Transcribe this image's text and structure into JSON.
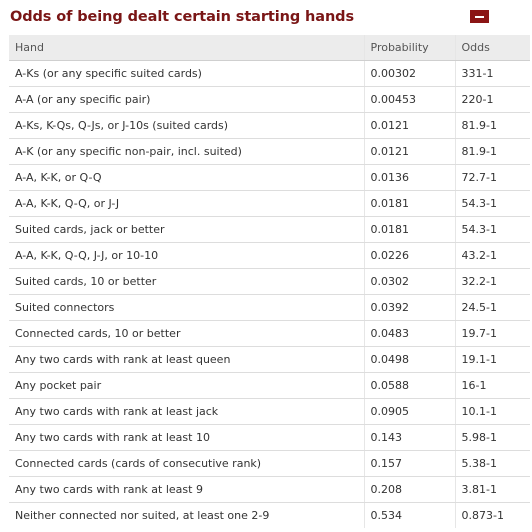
{
  "title": "Odds of being dealt certain starting hands",
  "collapse_button": {
    "icon": "minus-icon",
    "color": "#8b1515"
  },
  "colors": {
    "title": "#7a1616",
    "header_bg": "#ececec",
    "text": "#333333"
  },
  "table": {
    "headers": {
      "hand": "Hand",
      "probability": "Probability",
      "odds": "Odds"
    },
    "rows": [
      {
        "hand": "A-Ks (or any specific suited cards)",
        "probability": "0.00302",
        "odds": "331-1"
      },
      {
        "hand": "A-A (or any specific pair)",
        "probability": "0.00453",
        "odds": "220-1"
      },
      {
        "hand": "A-Ks, K-Qs, Q-Js, or J-10s (suited cards)",
        "probability": "0.0121",
        "odds": "81.9-1"
      },
      {
        "hand": "A-K (or any specific non-pair, incl. suited)",
        "probability": "0.0121",
        "odds": "81.9-1"
      },
      {
        "hand": "A-A, K-K, or Q-Q",
        "probability": "0.0136",
        "odds": "72.7-1"
      },
      {
        "hand": "A-A, K-K, Q-Q, or J-J",
        "probability": "0.0181",
        "odds": "54.3-1"
      },
      {
        "hand": "Suited cards, jack or better",
        "probability": "0.0181",
        "odds": "54.3-1"
      },
      {
        "hand": "A-A, K-K, Q-Q, J-J, or 10-10",
        "probability": "0.0226",
        "odds": "43.2-1"
      },
      {
        "hand": "Suited cards, 10 or better",
        "probability": "0.0302",
        "odds": "32.2-1"
      },
      {
        "hand": "Suited connectors",
        "probability": "0.0392",
        "odds": "24.5-1"
      },
      {
        "hand": "Connected cards, 10 or better",
        "probability": "0.0483",
        "odds": "19.7-1"
      },
      {
        "hand": "Any two cards with rank at least queen",
        "probability": "0.0498",
        "odds": "19.1-1"
      },
      {
        "hand": "Any pocket pair",
        "probability": "0.0588",
        "odds": "16-1"
      },
      {
        "hand": "Any two cards with rank at least jack",
        "probability": "0.0905",
        "odds": "10.1-1"
      },
      {
        "hand": "Any two cards with rank at least 10",
        "probability": "0.143",
        "odds": "5.98-1"
      },
      {
        "hand": "Connected cards (cards of consecutive rank)",
        "probability": "0.157",
        "odds": "5.38-1"
      },
      {
        "hand": "Any two cards with rank at least 9",
        "probability": "0.208",
        "odds": "3.81-1"
      },
      {
        "hand": "Neither connected nor suited, at least one 2-9",
        "probability": "0.534",
        "odds": "0.873-1"
      }
    ]
  }
}
